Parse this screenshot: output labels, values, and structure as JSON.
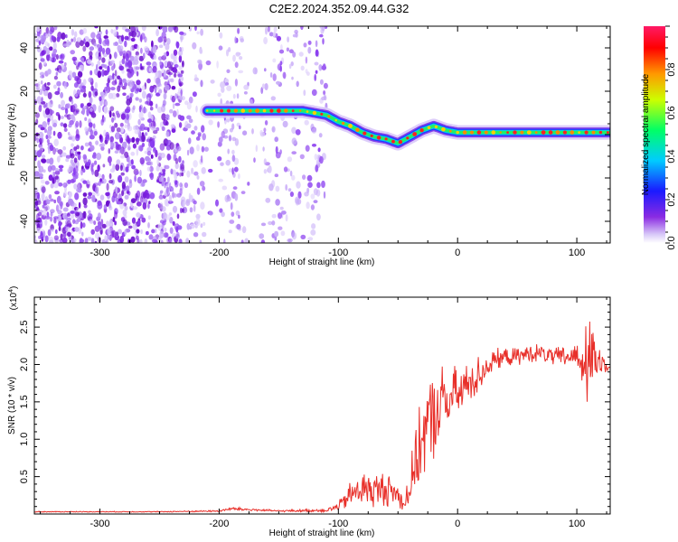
{
  "title": "C2E2.2024.352.09.44.G32",
  "chart_data": [
    {
      "type": "heatmap",
      "name": "spectrogram",
      "xlabel": "Height of straight line (km)",
      "ylabel": "Frequency (Hz)",
      "xlim": [
        -355,
        128
      ],
      "ylim": [
        -50,
        50
      ],
      "xticks": [
        -300,
        -200,
        -100,
        0,
        100
      ],
      "yticks": [
        -40,
        -20,
        0,
        20,
        40
      ],
      "colorbar": {
        "label": "Normalized spectral amplitude",
        "range": [
          0,
          1
        ],
        "ticks": [
          0.0,
          0.2,
          0.4,
          0.6,
          0.8
        ],
        "tick_labels": [
          "0.0",
          "0.2",
          "0.4",
          "0.6",
          "0.8"
        ]
      },
      "signal_track": {
        "x": [
          -210,
          -200,
          -190,
          -180,
          -170,
          -160,
          -150,
          -140,
          -130,
          -120,
          -110,
          -100,
          -90,
          -80,
          -70,
          -60,
          -50,
          -40,
          -30,
          -20,
          -10,
          0,
          20,
          40,
          60,
          80,
          100,
          120,
          128
        ],
        "y": [
          11,
          11,
          11,
          11,
          11,
          11,
          11,
          11,
          11,
          10,
          9,
          6,
          4,
          1,
          -1,
          -2,
          -4,
          -1,
          2,
          4,
          2,
          1,
          1,
          1,
          1,
          1,
          1,
          1,
          1
        ]
      },
      "noise_region": [
        -355,
        -110
      ],
      "grid": false
    },
    {
      "type": "line",
      "name": "snr",
      "xlabel": "Height of straight line (km)",
      "ylabel": "SNR (10 * v/v)",
      "multiplier": "(x10",
      "multiplier_exp": "4",
      "xlim": [
        -355,
        128
      ],
      "ylim": [
        0,
        2.9
      ],
      "xticks": [
        -300,
        -200,
        -100,
        0,
        100
      ],
      "yticks": [
        0.5,
        1.0,
        1.5,
        2.0,
        2.5
      ],
      "ytick_labels": [
        "0.5",
        "1.0",
        "1.5",
        "2.0",
        "2.5"
      ],
      "color": "#e8302a",
      "envelope_x": [
        -355,
        -300,
        -250,
        -200,
        -190,
        -150,
        -110,
        -100,
        -90,
        -80,
        -70,
        -60,
        -50,
        -45,
        -40,
        -35,
        -30,
        -25,
        -20,
        -15,
        -10,
        -5,
        0,
        10,
        20,
        30,
        40,
        50,
        60,
        70,
        80,
        90,
        100,
        105,
        110,
        115,
        120,
        128
      ],
      "envelope_y": [
        0.03,
        0.03,
        0.03,
        0.04,
        0.07,
        0.04,
        0.05,
        0.1,
        0.25,
        0.35,
        0.3,
        0.35,
        0.25,
        0.15,
        0.35,
        0.7,
        1.0,
        1.2,
        1.3,
        1.45,
        1.5,
        1.55,
        1.6,
        1.75,
        1.9,
        2.05,
        2.1,
        2.1,
        2.15,
        2.15,
        2.1,
        2.1,
        2.12,
        2.05,
        2.0,
        2.05,
        2.05,
        2.0
      ],
      "noise_amplitude": [
        0.005,
        0.005,
        0.005,
        0.01,
        0.02,
        0.01,
        0.02,
        0.05,
        0.15,
        0.2,
        0.2,
        0.2,
        0.15,
        0.1,
        0.25,
        0.35,
        0.45,
        0.5,
        0.5,
        0.45,
        0.4,
        0.35,
        0.3,
        0.25,
        0.2,
        0.12,
        0.1,
        0.1,
        0.1,
        0.1,
        0.1,
        0.12,
        0.15,
        0.3,
        0.5,
        0.35,
        0.12,
        0.08
      ]
    }
  ]
}
